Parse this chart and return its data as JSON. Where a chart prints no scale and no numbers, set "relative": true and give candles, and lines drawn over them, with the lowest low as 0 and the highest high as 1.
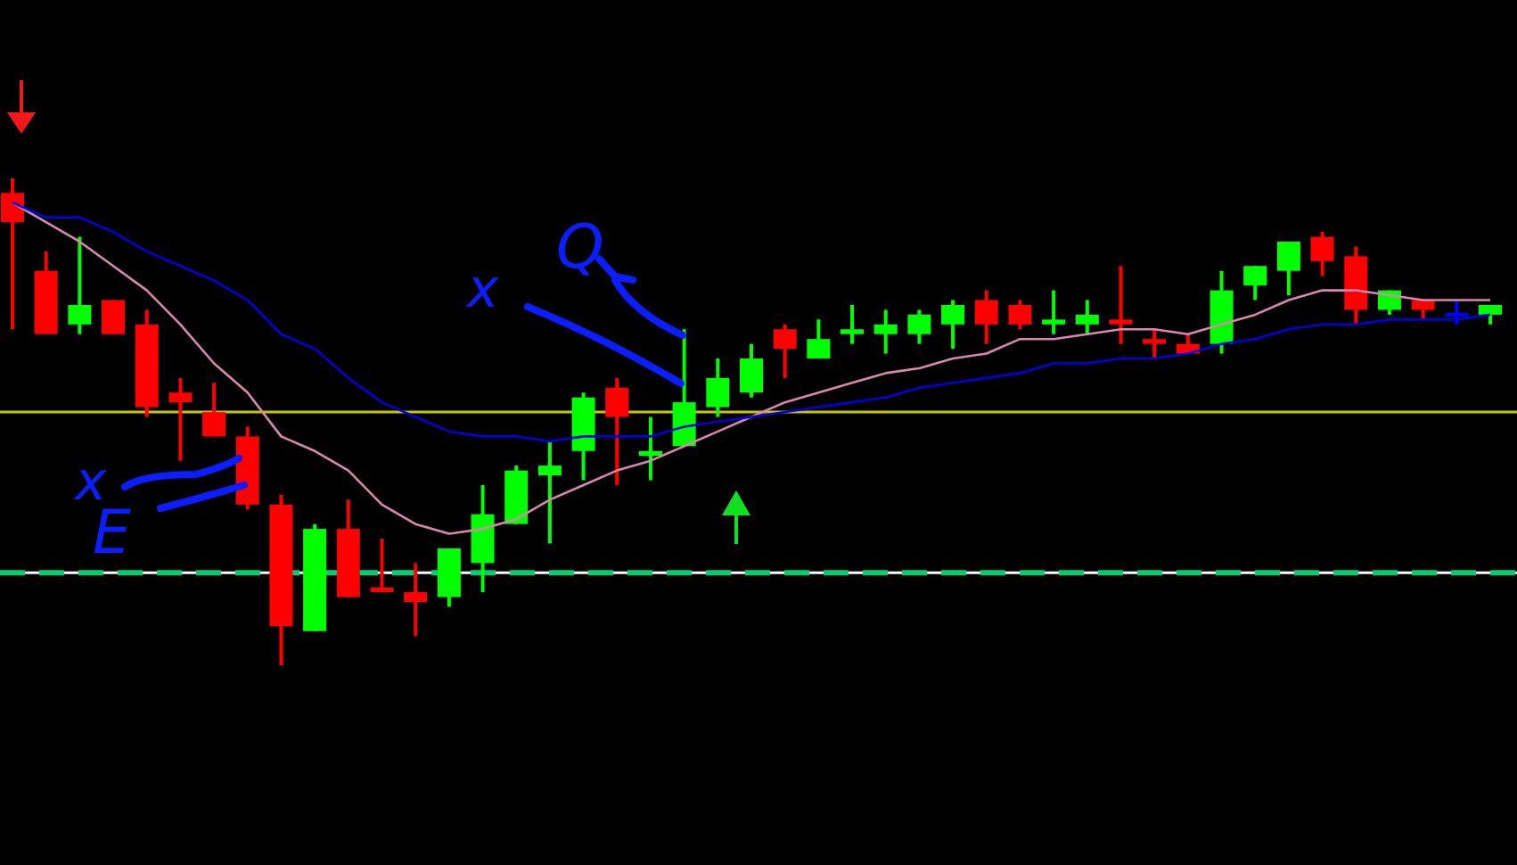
{
  "chart_data": {
    "type": "candlestick",
    "relative": true,
    "categories": [
      null,
      null,
      null,
      null,
      null,
      null,
      null,
      null,
      null,
      null,
      null,
      null,
      null,
      null,
      null,
      null,
      null,
      null,
      null,
      null,
      null,
      null,
      null,
      null,
      null,
      null,
      null,
      null,
      null,
      null,
      null,
      null,
      null,
      null,
      null,
      null,
      null,
      null,
      null,
      null,
      null,
      null,
      null,
      null,
      null
    ],
    "ohlc": [
      [
        0.97,
        1,
        0.69,
        0.91
      ],
      [
        0.81,
        0.85,
        0.68,
        0.68
      ],
      [
        0.7,
        0.88,
        0.68,
        0.74
      ],
      [
        0.75,
        0.75,
        0.68,
        0.68
      ],
      [
        0.7,
        0.73,
        0.51,
        0.53
      ],
      [
        0.56,
        0.59,
        0.42,
        0.54
      ],
      [
        0.52,
        0.58,
        0.47,
        0.47
      ],
      [
        0.47,
        0.49,
        0.32,
        0.33
      ],
      [
        0.33,
        0.35,
        0,
        0.08
      ],
      [
        0.07,
        0.29,
        0.07,
        0.28
      ],
      [
        0.28,
        0.34,
        0.14,
        0.14
      ],
      [
        0.16,
        0.26,
        0.15,
        0.15
      ],
      [
        0.15,
        0.21,
        0.06,
        0.13
      ],
      [
        0.14,
        0.24,
        0.12,
        0.24
      ],
      [
        0.21,
        0.37,
        0.15,
        0.31
      ],
      [
        0.29,
        0.41,
        0.29,
        0.4
      ],
      [
        0.39,
        0.46,
        0.25,
        0.41
      ],
      [
        0.44,
        0.56,
        0.38,
        0.55
      ],
      [
        0.57,
        0.59,
        0.37,
        0.51
      ],
      [
        0.43,
        0.51,
        0.38,
        0.44
      ],
      [
        0.45,
        0.69,
        0.45,
        0.54
      ],
      [
        0.53,
        0.63,
        0.51,
        0.59
      ],
      [
        0.56,
        0.66,
        0.55,
        0.63
      ],
      [
        0.69,
        0.7,
        0.59,
        0.65
      ],
      [
        0.63,
        0.71,
        0.63,
        0.67
      ],
      [
        0.68,
        0.74,
        0.66,
        0.69
      ],
      [
        0.68,
        0.73,
        0.64,
        0.7
      ],
      [
        0.68,
        0.73,
        0.66,
        0.72
      ],
      [
        0.7,
        0.75,
        0.65,
        0.74
      ],
      [
        0.75,
        0.77,
        0.66,
        0.7
      ],
      [
        0.74,
        0.75,
        0.69,
        0.7
      ],
      [
        0.7,
        0.77,
        0.68,
        0.71
      ],
      [
        0.7,
        0.75,
        0.68,
        0.72
      ],
      [
        0.71,
        0.82,
        0.66,
        0.7
      ],
      [
        0.67,
        0.69,
        0.63,
        0.66
      ],
      [
        0.66,
        0.68,
        0.64,
        0.64
      ],
      [
        0.66,
        0.81,
        0.64,
        0.77
      ],
      [
        0.78,
        0.82,
        0.75,
        0.82
      ],
      [
        0.81,
        0.87,
        0.76,
        0.87
      ],
      [
        0.88,
        0.89,
        0.8,
        0.83
      ],
      [
        0.84,
        0.86,
        0.7,
        0.73
      ],
      [
        0.73,
        0.77,
        0.72,
        0.77
      ],
      [
        0.75,
        0.75,
        0.71,
        0.73
      ],
      [
        0.72,
        0.75,
        0.7,
        0.72
      ],
      [
        0.72,
        0.74,
        0.7,
        0.74
      ]
    ],
    "colors": [
      "#ff0000",
      "#ff0000",
      "#00ff00",
      "#ff0000",
      "#ff0000",
      "#ff0000",
      "#ff0000",
      "#ff0000",
      "#ff0000",
      "#00ff00",
      "#ff0000",
      "#ff0000",
      "#ff0000",
      "#00ff00",
      "#00ff00",
      "#00ff00",
      "#00ff00",
      "#00ff00",
      "#ff0000",
      "#00ff00",
      "#00ff00",
      "#00ff00",
      "#00ff00",
      "#ff0000",
      "#00ff00",
      "#00ff00",
      "#00ff00",
      "#00ff00",
      "#00ff00",
      "#ff0000",
      "#ff0000",
      "#00ff00",
      "#00ff00",
      "#ff0000",
      "#ff0000",
      "#ff0000",
      "#00ff00",
      "#00ff00",
      "#00ff00",
      "#ff0000",
      "#ff0000",
      "#00ff00",
      "#ff0000",
      "#0000ff",
      "#00ff00"
    ],
    "series": [
      {
        "type": "line",
        "color": "#d987b0",
        "values": [
          0.95,
          0.91,
          0.87,
          0.82,
          0.77,
          0.7,
          0.62,
          0.56,
          0.47,
          0.44,
          0.4,
          0.33,
          0.29,
          0.27,
          0.28,
          0.3,
          0.34,
          0.37,
          0.4,
          0.42,
          0.45,
          0.48,
          0.51,
          0.54,
          0.56,
          0.58,
          0.6,
          0.61,
          0.63,
          0.64,
          0.67,
          0.67,
          0.68,
          0.69,
          0.69,
          0.68,
          0.7,
          0.72,
          0.75,
          0.77,
          0.77,
          0.76,
          0.75,
          0.75,
          0.75
        ]
      },
      {
        "type": "line",
        "color": "#0000e0",
        "values": [
          0.95,
          0.92,
          0.92,
          0.89,
          0.85,
          0.82,
          0.79,
          0.75,
          0.68,
          0.65,
          0.59,
          0.54,
          0.51,
          0.48,
          0.47,
          0.47,
          0.46,
          0.47,
          0.47,
          0.47,
          0.49,
          0.5,
          0.51,
          0.52,
          0.53,
          0.54,
          0.55,
          0.57,
          0.58,
          0.59,
          0.6,
          0.62,
          0.62,
          0.63,
          0.63,
          0.64,
          0.66,
          0.67,
          0.69,
          0.7,
          0.7,
          0.71,
          0.71,
          0.71,
          0.72
        ]
      }
    ],
    "ref_lines": [
      {
        "axis": "y",
        "value": 0.52,
        "color": "#c8c800",
        "line_style": "solid"
      },
      {
        "axis": "y",
        "value": 0.19,
        "color": "#ffffff",
        "line_style": "solid"
      },
      {
        "axis": "y",
        "value": 0.19,
        "color": "#00d070",
        "line_style": "dashed"
      }
    ],
    "annotations": [
      "x",
      "E",
      "x",
      "Q"
    ]
  }
}
